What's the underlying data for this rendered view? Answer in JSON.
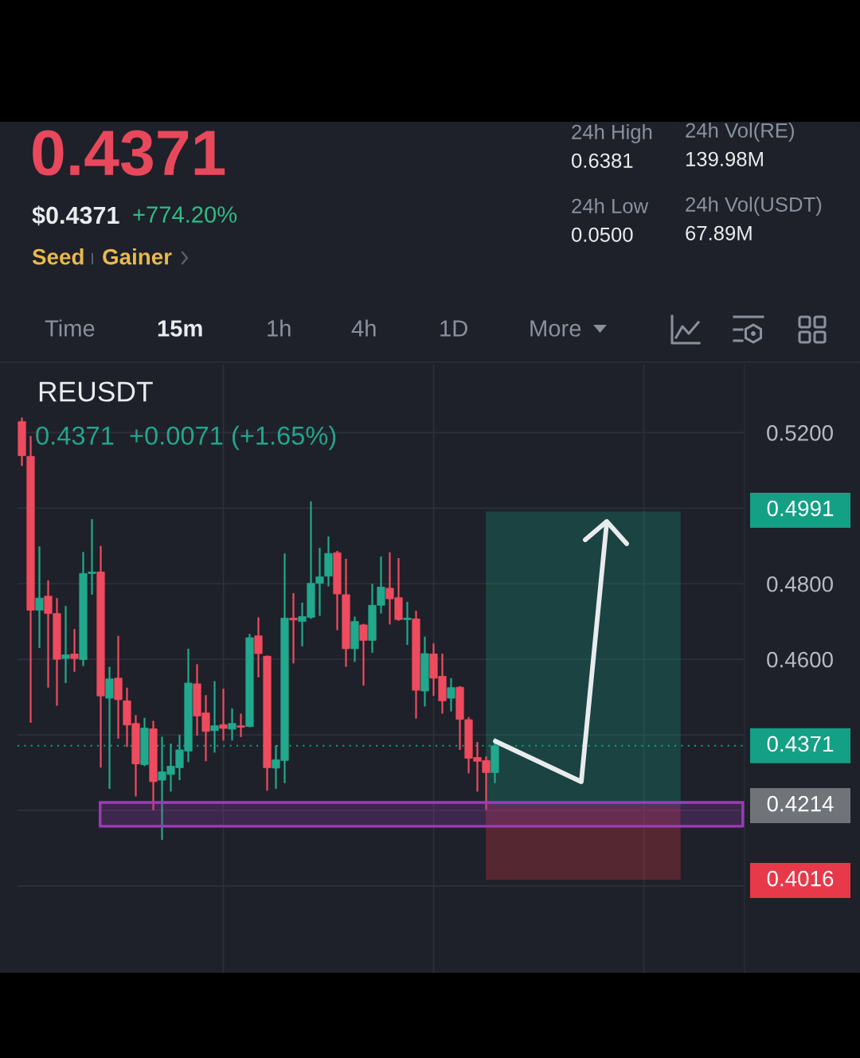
{
  "chart_data": {
    "type": "candlestick",
    "title": "REUSDT",
    "subtitle": "0.4371  +0.0071 (+1.65%)",
    "categories": [
      null,
      null,
      null,
      null,
      null,
      null,
      null,
      null,
      null,
      null,
      null,
      null,
      null,
      null,
      null,
      null,
      null,
      null,
      null,
      null,
      null,
      null,
      null,
      null,
      null,
      null,
      null,
      null,
      null,
      null,
      null,
      null,
      null,
      null,
      null,
      null,
      null,
      null,
      null,
      null,
      null,
      null,
      null,
      null,
      null,
      null,
      null,
      null,
      null,
      null,
      null,
      null,
      null,
      null,
      null,
      null,
      null,
      null,
      null,
      null,
      null,
      null,
      null,
      null,
      null,
      null,
      null,
      null,
      null,
      null,
      null,
      null,
      null,
      null,
      null,
      null,
      null,
      null,
      null,
      null,
      null,
      null,
      null
    ],
    "ohlc": [
      [
        0.5229,
        0.524,
        0.5112,
        0.5139
      ],
      [
        0.5137,
        0.5191,
        0.4432,
        0.473
      ],
      [
        0.473,
        0.4899,
        0.463,
        0.4762
      ],
      [
        0.4767,
        0.4809,
        0.4525,
        0.4721
      ],
      [
        0.4721,
        0.4762,
        0.4477,
        0.46
      ],
      [
        0.4602,
        0.4741,
        0.4537,
        0.4612
      ],
      [
        0.4614,
        0.468,
        0.4567,
        0.4602
      ],
      [
        0.4599,
        0.4884,
        0.4582,
        0.4827
      ],
      [
        0.4827,
        0.4971,
        0.4771,
        0.4831
      ],
      [
        0.4831,
        0.49,
        0.4313,
        0.4503
      ],
      [
        0.4497,
        0.458,
        0.4257,
        0.4548
      ],
      [
        0.455,
        0.4662,
        0.439,
        0.4493
      ],
      [
        0.449,
        0.4525,
        0.4368,
        0.4426
      ],
      [
        0.443,
        0.4452,
        0.4237,
        0.4323
      ],
      [
        0.4321,
        0.4445,
        0.4317,
        0.4418
      ],
      [
        0.4416,
        0.4437,
        0.4201,
        0.4276
      ],
      [
        0.428,
        0.4395,
        0.4122,
        0.4302
      ],
      [
        0.4295,
        0.4377,
        0.425,
        0.4317
      ],
      [
        0.4313,
        0.44,
        0.428,
        0.436
      ],
      [
        0.4357,
        0.4628,
        0.4328,
        0.4537
      ],
      [
        0.4535,
        0.4587,
        0.4398,
        0.445
      ],
      [
        0.4458,
        0.4505,
        0.433,
        0.4409
      ],
      [
        0.4411,
        0.4542,
        0.4353,
        0.4424
      ],
      [
        0.4427,
        0.4522,
        0.4385,
        0.4417
      ],
      [
        0.4415,
        0.447,
        0.4385,
        0.443
      ],
      [
        0.4424,
        0.4456,
        0.4394,
        0.442
      ],
      [
        0.4422,
        0.4667,
        0.442,
        0.4657
      ],
      [
        0.4662,
        0.4711,
        0.4552,
        0.4615
      ],
      [
        0.4608,
        0.461,
        0.4252,
        0.4313
      ],
      [
        0.4312,
        0.4372,
        0.4257,
        0.4334
      ],
      [
        0.4332,
        0.488,
        0.4272,
        0.4709
      ],
      [
        0.4709,
        0.4775,
        0.4589,
        0.4704
      ],
      [
        0.47,
        0.475,
        0.4634,
        0.4713
      ],
      [
        0.4711,
        0.5018,
        0.4707,
        0.4801
      ],
      [
        0.4801,
        0.4895,
        0.4715,
        0.4818
      ],
      [
        0.482,
        0.4925,
        0.4793,
        0.488
      ],
      [
        0.4882,
        0.4887,
        0.4677,
        0.4773
      ],
      [
        0.4771,
        0.4866,
        0.458,
        0.4628
      ],
      [
        0.4628,
        0.4713,
        0.4593,
        0.47
      ],
      [
        0.4691,
        0.4694,
        0.453,
        0.465
      ],
      [
        0.465,
        0.48,
        0.4617,
        0.4743
      ],
      [
        0.4743,
        0.4872,
        0.4721,
        0.4791
      ],
      [
        0.4788,
        0.4883,
        0.4692,
        0.476
      ],
      [
        0.4763,
        0.4868,
        0.4702,
        0.4705
      ],
      [
        0.4705,
        0.4752,
        0.4638,
        0.4709
      ],
      [
        0.4707,
        0.4728,
        0.4443,
        0.4518
      ],
      [
        0.4516,
        0.466,
        0.4475,
        0.4615
      ],
      [
        0.4614,
        0.4642,
        0.4503,
        0.455
      ],
      [
        0.4555,
        0.4615,
        0.4456,
        0.449
      ],
      [
        0.4497,
        0.455,
        0.4462,
        0.4525
      ],
      [
        0.4526,
        0.4529,
        0.436,
        0.4441
      ],
      [
        0.444,
        0.4447,
        0.4298,
        0.4338
      ],
      [
        0.434,
        0.4381,
        0.425,
        0.433
      ],
      [
        0.4332,
        0.4343,
        0.4201,
        0.43
      ],
      [
        0.43,
        0.4392,
        0.4272,
        0.4371
      ],
      null,
      null,
      null,
      null,
      null,
      null,
      null,
      null,
      null,
      null,
      null,
      null,
      null,
      null,
      null,
      null,
      null,
      null,
      null,
      null,
      null,
      null,
      null,
      null,
      null,
      null,
      null,
      null
    ],
    "colors": [
      "#ef4b5f",
      "#ef4b5f",
      "#21a88d",
      "#ef4b5f",
      "#ef4b5f",
      "#21a88d",
      "#ef4b5f",
      "#21a88d",
      "#21a88d",
      "#ef4b5f",
      "#21a88d",
      "#ef4b5f",
      "#ef4b5f",
      "#ef4b5f",
      "#21a88d",
      "#ef4b5f",
      "#21a88d",
      "#21a88d",
      "#21a88d",
      "#21a88d",
      "#ef4b5f",
      "#ef4b5f",
      "#21a88d",
      "#ef4b5f",
      "#21a88d",
      "#ef4b5f",
      "#21a88d",
      "#ef4b5f",
      "#ef4b5f",
      "#21a88d",
      "#21a88d",
      "#ef4b5f",
      "#21a88d",
      "#21a88d",
      "#21a88d",
      "#21a88d",
      "#ef4b5f",
      "#ef4b5f",
      "#21a88d",
      "#ef4b5f",
      "#21a88d",
      "#21a88d",
      "#ef4b5f",
      "#ef4b5f",
      "#21a88d",
      "#ef4b5f",
      "#21a88d",
      "#ef4b5f",
      "#ef4b5f",
      "#21a88d",
      "#ef4b5f",
      "#ef4b5f",
      "#ef4b5f",
      "#ef4b5f",
      "#21a88d",
      null,
      null,
      null,
      null,
      null,
      null,
      null,
      null,
      null,
      null,
      null,
      null,
      null,
      null,
      null,
      null,
      null,
      null,
      null,
      null,
      null,
      null,
      null,
      null,
      null,
      null,
      null,
      null
    ],
    "ylim": [
      0.377,
      0.538
    ],
    "yticks": [
      {
        "value": 0.52,
        "label": "0.5200"
      },
      {
        "value": 0.5,
        "label": null
      },
      {
        "value": 0.48,
        "label": "0.4800"
      },
      {
        "value": 0.46,
        "label": "0.4600"
      },
      {
        "value": 0.44,
        "label": null
      },
      {
        "value": 0.42,
        "label": null
      },
      {
        "value": 0.4,
        "label": null
      }
    ],
    "grid": true,
    "tick_labels": "y",
    "ref_lines": [
      {
        "axis": "y",
        "value": 0.4371,
        "label": "0.4371",
        "color": "#14a085",
        "line_style": "dotted"
      }
    ],
    "bands": [
      {
        "axis": "y",
        "from": 0.4214,
        "to": 0.4991,
        "color": "#14a085"
      },
      {
        "axis": "y",
        "from": 0.4214,
        "to": 0.4016,
        "color": "#e8394a"
      },
      {
        "axis": "y",
        "from": 0.4221,
        "to": 0.4158,
        "color": "#9c3cb8"
      }
    ],
    "annotations": [
      "0.4371",
      "$0.4371",
      "+774.20%",
      "Seed",
      "Gainer",
      "24h High",
      "0.6381",
      "24h Vol(RE)",
      "139.98M",
      "24h Low",
      "0.0500",
      "24h Vol(USDT)",
      "67.89M",
      "Time",
      "15m",
      "1h",
      "4h",
      "1D",
      "More",
      "0.4991",
      "0.4214",
      "0.4016"
    ]
  }
}
